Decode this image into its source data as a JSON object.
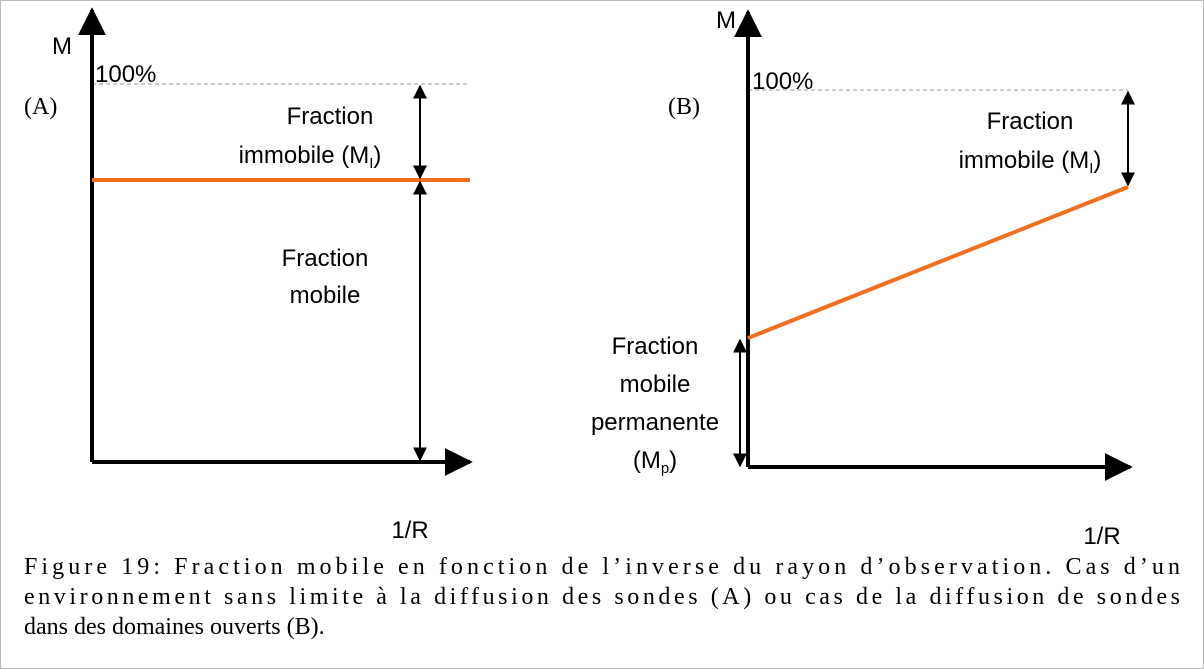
{
  "panel_a": {
    "axis_y": "M",
    "top": "100%",
    "tag": "(A)",
    "immobile": {
      "line1": "Fraction",
      "line2": "immobile (M",
      "sub": "I",
      "close": ")"
    },
    "mobile": [
      "Fraction",
      "mobile"
    ],
    "axis_x": "1/R"
  },
  "panel_b": {
    "axis_y": "M",
    "top": "100%",
    "tag": "(B)",
    "immobile": {
      "line1": "Fraction",
      "line2": "immobile (M",
      "sub": "I",
      "close": ")"
    },
    "permanent": {
      "lines": [
        "Fraction",
        "mobile",
        "permanente"
      ],
      "open": "(M",
      "sub": "p",
      "close": ")"
    },
    "axis_x": "1/R"
  },
  "caption": [
    "Figure 19: Fraction mobile en fonction de l’inverse du rayon d’observation. Cas d’un",
    "environnement sans limite à la diffusion des sondes (A) ou cas de la diffusion de sondes",
    "dans des domaines ouverts (B)."
  ]
}
